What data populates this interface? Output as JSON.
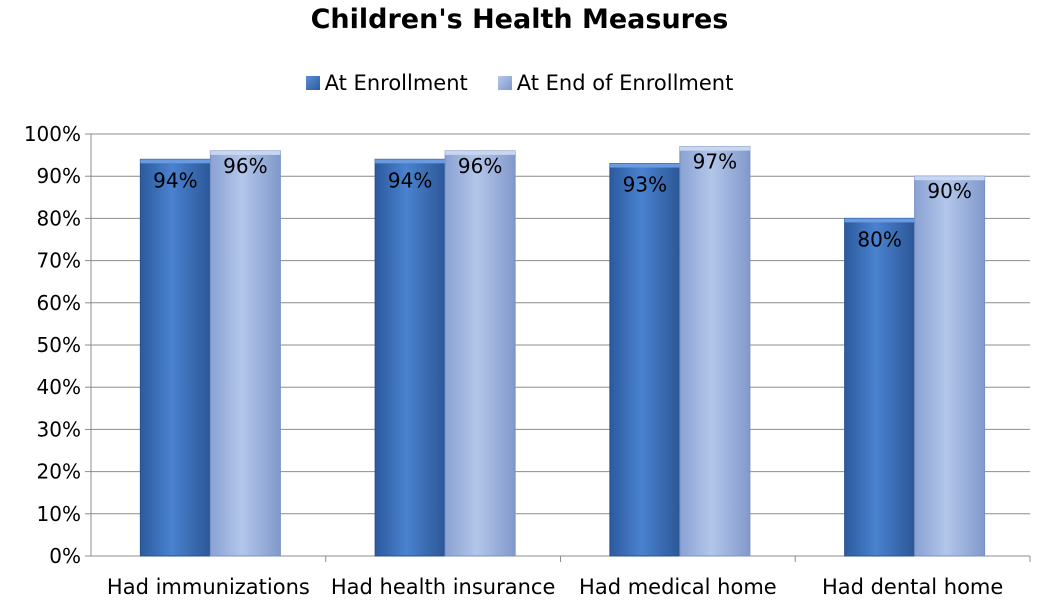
{
  "chart_data": {
    "type": "bar",
    "title": "Children's Health Measures",
    "categories": [
      "Had immunizations",
      "Had health insurance",
      "Had medical home",
      "Had dental home"
    ],
    "series": [
      {
        "name": "At Enrollment",
        "values": [
          94,
          94,
          93,
          80
        ],
        "labels": [
          "94%",
          "94%",
          "93%",
          "80%"
        ],
        "color": "#3a6fb8"
      },
      {
        "name": "At End of Enrollment",
        "values": [
          96,
          96,
          97,
          90
        ],
        "labels": [
          "96%",
          "96%",
          "97%",
          "90%"
        ],
        "color": "#92a9d9"
      }
    ],
    "ylim": [
      0,
      100
    ],
    "yticks": [
      "0%",
      "10%",
      "20%",
      "30%",
      "40%",
      "50%",
      "60%",
      "70%",
      "80%",
      "90%",
      "100%"
    ],
    "grid": true,
    "legend_position": "top"
  }
}
